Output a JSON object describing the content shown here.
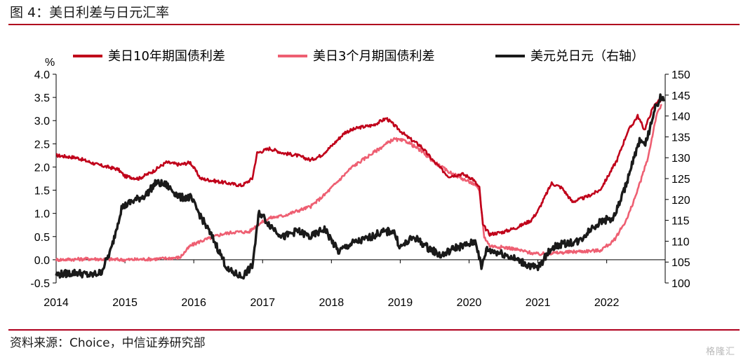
{
  "figure": {
    "title": "图 4：美日利差与日元汇率",
    "source": "资料来源：Choice，中信证券研究部",
    "logo_text": "格隆汇"
  },
  "chart_data": {
    "type": "line",
    "y_left": {
      "unit": "%",
      "range": [
        -0.5,
        4.0
      ],
      "ticks": [
        "4.0",
        "3.5",
        "3.0",
        "2.5",
        "2.0",
        "1.5",
        "1.0",
        "0.5",
        "0.0",
        "-0.5"
      ]
    },
    "y_right": {
      "range": [
        100,
        150
      ],
      "ticks": [
        "150",
        "145",
        "140",
        "135",
        "130",
        "125",
        "120",
        "115",
        "110",
        "105",
        "100"
      ]
    },
    "x": {
      "range": [
        2014.0,
        2022.85
      ],
      "ticks": [
        "2014",
        "2015",
        "2016",
        "2017",
        "2018",
        "2019",
        "2020",
        "2021",
        "2022"
      ]
    },
    "legend_position": "top",
    "series": [
      {
        "name": "美日10年期国债利差",
        "color": "#c0001a",
        "axis": "left",
        "points": [
          [
            2014.0,
            2.25
          ],
          [
            2014.3,
            2.2
          ],
          [
            2014.6,
            2.05
          ],
          [
            2014.9,
            1.95
          ],
          [
            2015.0,
            1.8
          ],
          [
            2015.2,
            1.75
          ],
          [
            2015.4,
            1.9
          ],
          [
            2015.6,
            2.1
          ],
          [
            2015.8,
            2.05
          ],
          [
            2015.95,
            2.1
          ],
          [
            2016.1,
            1.75
          ],
          [
            2016.3,
            1.7
          ],
          [
            2016.5,
            1.65
          ],
          [
            2016.7,
            1.6
          ],
          [
            2016.85,
            1.75
          ],
          [
            2016.92,
            2.3
          ],
          [
            2017.1,
            2.4
          ],
          [
            2017.3,
            2.3
          ],
          [
            2017.5,
            2.25
          ],
          [
            2017.7,
            2.15
          ],
          [
            2017.85,
            2.25
          ],
          [
            2018.0,
            2.45
          ],
          [
            2018.2,
            2.75
          ],
          [
            2018.4,
            2.85
          ],
          [
            2018.6,
            2.9
          ],
          [
            2018.8,
            3.05
          ],
          [
            2018.95,
            2.85
          ],
          [
            2019.1,
            2.65
          ],
          [
            2019.3,
            2.45
          ],
          [
            2019.5,
            2.1
          ],
          [
            2019.7,
            1.8
          ],
          [
            2019.9,
            1.85
          ],
          [
            2020.05,
            1.75
          ],
          [
            2020.15,
            1.55
          ],
          [
            2020.2,
            0.75
          ],
          [
            2020.3,
            0.55
          ],
          [
            2020.5,
            0.6
          ],
          [
            2020.7,
            0.7
          ],
          [
            2020.9,
            0.85
          ],
          [
            2021.0,
            1.05
          ],
          [
            2021.2,
            1.65
          ],
          [
            2021.35,
            1.55
          ],
          [
            2021.5,
            1.25
          ],
          [
            2021.7,
            1.35
          ],
          [
            2021.9,
            1.5
          ],
          [
            2022.0,
            1.75
          ],
          [
            2022.15,
            2.15
          ],
          [
            2022.3,
            2.75
          ],
          [
            2022.45,
            3.1
          ],
          [
            2022.55,
            2.8
          ],
          [
            2022.65,
            3.2
          ],
          [
            2022.72,
            3.4
          ],
          [
            2022.8,
            3.45
          ]
        ]
      },
      {
        "name": "美日3个月期国债利差",
        "color": "#ee5f72",
        "axis": "left",
        "points": [
          [
            2014.0,
            0.0
          ],
          [
            2014.5,
            0.02
          ],
          [
            2015.0,
            0.0
          ],
          [
            2015.5,
            0.02
          ],
          [
            2015.8,
            0.05
          ],
          [
            2015.95,
            0.3
          ],
          [
            2016.1,
            0.4
          ],
          [
            2016.4,
            0.55
          ],
          [
            2016.6,
            0.6
          ],
          [
            2016.8,
            0.6
          ],
          [
            2016.92,
            0.75
          ],
          [
            2017.1,
            0.9
          ],
          [
            2017.3,
            0.95
          ],
          [
            2017.5,
            1.05
          ],
          [
            2017.7,
            1.15
          ],
          [
            2017.9,
            1.4
          ],
          [
            2018.1,
            1.7
          ],
          [
            2018.3,
            2.0
          ],
          [
            2018.5,
            2.2
          ],
          [
            2018.7,
            2.4
          ],
          [
            2018.9,
            2.6
          ],
          [
            2019.1,
            2.55
          ],
          [
            2019.3,
            2.35
          ],
          [
            2019.5,
            2.1
          ],
          [
            2019.7,
            1.9
          ],
          [
            2019.9,
            1.75
          ],
          [
            2020.05,
            1.65
          ],
          [
            2020.15,
            1.5
          ],
          [
            2020.22,
            0.5
          ],
          [
            2020.3,
            0.3
          ],
          [
            2020.6,
            0.25
          ],
          [
            2020.9,
            0.15
          ],
          [
            2021.0,
            0.12
          ],
          [
            2021.3,
            0.15
          ],
          [
            2021.6,
            0.18
          ],
          [
            2021.9,
            0.2
          ],
          [
            2022.1,
            0.4
          ],
          [
            2022.3,
            0.9
          ],
          [
            2022.45,
            1.5
          ],
          [
            2022.6,
            2.2
          ],
          [
            2022.72,
            3.1
          ],
          [
            2022.8,
            3.35
          ]
        ]
      },
      {
        "name": "美元兑日元（右轴）",
        "color": "#1a1a1a",
        "axis": "right",
        "points": [
          [
            2014.0,
            102.0
          ],
          [
            2014.3,
            102.5
          ],
          [
            2014.5,
            101.8
          ],
          [
            2014.65,
            102.5
          ],
          [
            2014.8,
            108.0
          ],
          [
            2014.95,
            118.0
          ],
          [
            2015.1,
            119.5
          ],
          [
            2015.3,
            121.0
          ],
          [
            2015.45,
            124.0
          ],
          [
            2015.6,
            123.5
          ],
          [
            2015.8,
            120.5
          ],
          [
            2015.95,
            120.5
          ],
          [
            2016.1,
            116.0
          ],
          [
            2016.3,
            110.0
          ],
          [
            2016.5,
            103.0
          ],
          [
            2016.7,
            101.5
          ],
          [
            2016.85,
            104.0
          ],
          [
            2016.95,
            117.0
          ],
          [
            2017.1,
            114.0
          ],
          [
            2017.3,
            111.0
          ],
          [
            2017.5,
            112.5
          ],
          [
            2017.7,
            111.0
          ],
          [
            2017.9,
            113.0
          ],
          [
            2018.1,
            107.5
          ],
          [
            2018.3,
            109.5
          ],
          [
            2018.5,
            110.5
          ],
          [
            2018.7,
            112.0
          ],
          [
            2018.9,
            112.5
          ],
          [
            2019.0,
            108.5
          ],
          [
            2019.2,
            111.0
          ],
          [
            2019.4,
            108.5
          ],
          [
            2019.6,
            106.5
          ],
          [
            2019.8,
            108.5
          ],
          [
            2019.95,
            109.0
          ],
          [
            2020.1,
            110.0
          ],
          [
            2020.18,
            103.5
          ],
          [
            2020.25,
            108.0
          ],
          [
            2020.5,
            107.0
          ],
          [
            2020.7,
            105.5
          ],
          [
            2020.9,
            104.0
          ],
          [
            2021.0,
            103.5
          ],
          [
            2021.2,
            108.5
          ],
          [
            2021.4,
            109.5
          ],
          [
            2021.6,
            110.0
          ],
          [
            2021.8,
            113.5
          ],
          [
            2021.95,
            115.0
          ],
          [
            2022.1,
            115.5
          ],
          [
            2022.25,
            122.0
          ],
          [
            2022.4,
            130.0
          ],
          [
            2022.5,
            135.0
          ],
          [
            2022.55,
            132.5
          ],
          [
            2022.65,
            138.5
          ],
          [
            2022.72,
            142.5
          ],
          [
            2022.78,
            144.5
          ],
          [
            2022.83,
            143.5
          ]
        ]
      }
    ]
  }
}
